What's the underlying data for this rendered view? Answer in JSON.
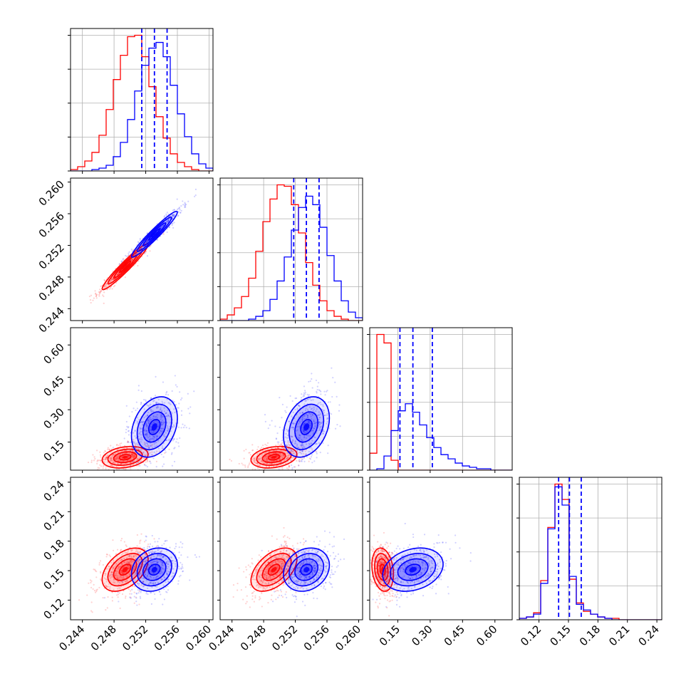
{
  "chart_data": {
    "type": "corner",
    "title": "",
    "colors": {
      "series_a": "#ff0000",
      "series_b": "#0000ff",
      "grid": "#b0b0b0"
    },
    "series": [
      {
        "key": "a",
        "color": "#ff0000"
      },
      {
        "key": "b",
        "color": "#0000ff"
      }
    ],
    "params": [
      {
        "range": [
          0.2425,
          0.2605
        ],
        "ticks": [
          0.244,
          0.248,
          0.252,
          0.256,
          0.26
        ],
        "tick_labels": [
          "0.244",
          "0.248",
          "0.252",
          "0.256",
          "0.260"
        ],
        "a": {
          "mean": 0.2494,
          "sd": 0.00145
        },
        "b": {
          "mean": 0.2531,
          "sd": 0.00145
        },
        "hist_a": [
          1,
          3,
          7,
          13,
          25,
          43,
          64,
          81,
          94,
          95,
          80,
          59,
          38,
          23,
          12,
          6,
          3,
          1,
          0,
          0
        ],
        "hist_b": [
          0,
          0,
          0,
          1,
          2,
          4,
          10,
          20,
          36,
          56,
          74,
          86,
          90,
          80,
          60,
          40,
          24,
          12,
          5,
          2
        ],
        "quantiles_b": [
          0.2515,
          0.2531,
          0.2547
        ]
      },
      {
        "range": [
          0.2425,
          0.2605
        ],
        "ticks": [
          0.244,
          0.248,
          0.252,
          0.256,
          0.26
        ],
        "tick_labels": [
          "0.244",
          "0.248",
          "0.252",
          "0.256",
          "0.260"
        ],
        "a": {
          "mean": 0.2493,
          "sd": 0.00145
        },
        "b": {
          "mean": 0.2534,
          "sd": 0.00145
        },
        "hist_a": [
          1,
          4,
          9,
          17,
          30,
          49,
          70,
          86,
          96,
          95,
          82,
          62,
          41,
          25,
          14,
          7,
          3,
          1,
          0,
          0
        ],
        "hist_b": [
          0,
          0,
          0,
          0,
          1,
          3,
          7,
          15,
          28,
          45,
          64,
          80,
          88,
          82,
          66,
          46,
          28,
          14,
          6,
          2
        ],
        "quantiles_b": [
          0.2518,
          0.2534,
          0.255
        ]
      },
      {
        "range": [
          0.02,
          0.68
        ],
        "ticks": [
          0.15,
          0.3,
          0.45,
          0.6
        ],
        "tick_labels": [
          "0.15",
          "0.30",
          "0.45",
          "0.60"
        ],
        "a": {
          "mean": 0.08,
          "sd": 0.025
        },
        "b": {
          "mean": 0.22,
          "sd": 0.07
        },
        "hist_a": [
          12,
          96,
          90,
          7,
          0,
          0,
          0,
          0,
          0,
          0,
          0,
          0,
          0,
          0,
          0,
          0,
          0,
          0,
          0,
          0
        ],
        "hist_b": [
          0,
          1,
          10,
          28,
          42,
          47,
          41,
          32,
          23,
          16,
          11,
          8,
          5,
          3,
          2,
          1,
          1,
          0,
          0,
          0
        ],
        "quantiles_b": [
          0.16,
          0.22,
          0.31
        ]
      },
      {
        "range": [
          0.1,
          0.245
        ],
        "ticks": [
          0.12,
          0.15,
          0.18,
          0.21,
          0.24
        ],
        "tick_labels": [
          "0.12",
          "0.15",
          "0.18",
          "0.21",
          "0.24"
        ],
        "a": {
          "mean": 0.151,
          "sd": 0.011
        },
        "b": {
          "mean": 0.151,
          "sd": 0.011
        },
        "hist_a": [
          1,
          2,
          5,
          28,
          66,
          97,
          86,
          29,
          12,
          6,
          4,
          2,
          1,
          1,
          0,
          0,
          0,
          0,
          0,
          0
        ],
        "hist_b": [
          1,
          2,
          4,
          26,
          65,
          95,
          82,
          31,
          11,
          7,
          4,
          2,
          1,
          0,
          0,
          0,
          0,
          0,
          0,
          0
        ],
        "quantiles_b": [
          0.14,
          0.151,
          0.163
        ]
      }
    ],
    "contours": [
      {
        "row": 1,
        "col": 0,
        "a": {
          "cx": 0.2494,
          "cy": 0.2493,
          "sx": 0.00145,
          "sy": 0.00145,
          "rho": 0.96
        },
        "b": {
          "cx": 0.2531,
          "cy": 0.2534,
          "sx": 0.00145,
          "sy": 0.00145,
          "rho": 0.96
        }
      },
      {
        "row": 2,
        "col": 0,
        "a": {
          "cx": 0.2494,
          "cy": 0.08,
          "sx": 0.00145,
          "sy": 0.025,
          "rho": 0.25
        },
        "b": {
          "cx": 0.2531,
          "cy": 0.22,
          "sx": 0.00145,
          "sy": 0.07,
          "rho": 0.3
        }
      },
      {
        "row": 2,
        "col": 1,
        "a": {
          "cx": 0.2493,
          "cy": 0.08,
          "sx": 0.00145,
          "sy": 0.025,
          "rho": 0.25
        },
        "b": {
          "cx": 0.2534,
          "cy": 0.22,
          "sx": 0.00145,
          "sy": 0.07,
          "rho": 0.3
        }
      },
      {
        "row": 3,
        "col": 0,
        "a": {
          "cx": 0.2494,
          "cy": 0.151,
          "sx": 0.00145,
          "sy": 0.011,
          "rho": 0.45
        },
        "b": {
          "cx": 0.2531,
          "cy": 0.151,
          "sx": 0.00145,
          "sy": 0.011,
          "rho": 0.2
        }
      },
      {
        "row": 3,
        "col": 1,
        "a": {
          "cx": 0.2493,
          "cy": 0.151,
          "sx": 0.00145,
          "sy": 0.011,
          "rho": 0.5
        },
        "b": {
          "cx": 0.2534,
          "cy": 0.151,
          "sx": 0.00145,
          "sy": 0.011,
          "rho": 0.2
        }
      },
      {
        "row": 3,
        "col": 2,
        "a": {
          "cx": 0.08,
          "cy": 0.151,
          "sx": 0.025,
          "sy": 0.011,
          "rho": -0.2
        },
        "b": {
          "cx": 0.22,
          "cy": 0.151,
          "sx": 0.07,
          "sy": 0.011,
          "rho": 0.25
        }
      }
    ],
    "contour_levels_sigma": [
      0.5,
      1.0,
      1.5,
      2.0
    ],
    "grid": true,
    "legend": "none"
  }
}
